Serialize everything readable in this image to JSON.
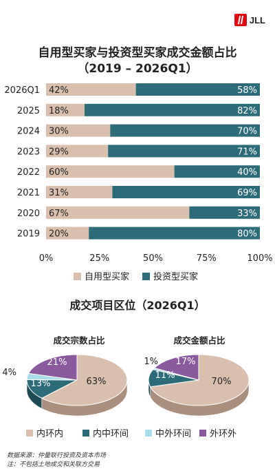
{
  "brand": {
    "name": "JLL"
  },
  "title_line1": "自用型买家与投资型买家成交金额占比",
  "title_line2": "（2019 – 2026Q1）",
  "chart_data": [
    {
      "type": "bar",
      "orientation": "horizontal",
      "stacked": true,
      "categories": [
        "2026Q1",
        "2025",
        "2024",
        "2023",
        "2022",
        "2021",
        "2020",
        "2019"
      ],
      "series": [
        {
          "name": "自用型买家",
          "values": [
            42,
            18,
            30,
            29,
            60,
            31,
            67,
            20
          ],
          "color": "#d9bfad"
        },
        {
          "name": "投资型买家",
          "values": [
            58,
            82,
            70,
            71,
            40,
            69,
            33,
            80
          ],
          "color": "#2e6b78"
        }
      ],
      "xlim": [
        0,
        100
      ],
      "xticks": [
        "0%",
        "25%",
        "50%",
        "75%",
        "100%"
      ],
      "value_suffix": "%",
      "legend_position": "bottom"
    },
    {
      "type": "pie",
      "title": "成交宗数占比",
      "labels": [
        "内环内",
        "内中环间",
        "中外环间",
        "外环外"
      ],
      "values": [
        63,
        13,
        4,
        21
      ],
      "display": [
        "63%",
        "13%",
        "4%",
        "21%"
      ]
    },
    {
      "type": "pie",
      "title": "成交金额占比",
      "labels": [
        "内环内",
        "内中环间",
        "中外环间",
        "外环外"
      ],
      "values": [
        70,
        11,
        1,
        17
      ],
      "display": [
        "70%",
        "11%",
        "1%",
        "17%"
      ]
    }
  ],
  "section2_title": "成交项目区位（2026Q1）",
  "pie_legend": [
    {
      "label": "内环内",
      "color": "#d9bfad"
    },
    {
      "label": "内中环间",
      "color": "#2e6b78"
    },
    {
      "label": "中外环间",
      "color": "#a9dbe8"
    },
    {
      "label": "外环外",
      "color": "#8a5a9e"
    }
  ],
  "footnote1": "数据来源：仲量联行投资及资本市场",
  "footnote2": "注：不包括土地成交和关联方交易"
}
